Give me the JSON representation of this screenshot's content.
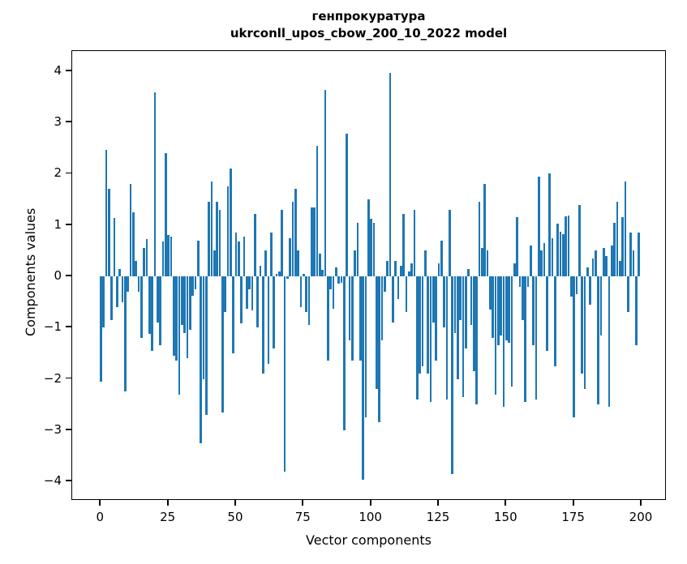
{
  "figure": {
    "background": "#ffffff",
    "bar_color": "#1f77b4",
    "spine_color": "#000000"
  },
  "chart_data": {
    "type": "bar",
    "title": "генпрокуратура",
    "subtitle": "ukrconll_upos_cbow_200_10_2022 model",
    "xlabel": "Vector components",
    "ylabel": "Components values",
    "x_ticks": [
      0,
      25,
      50,
      75,
      100,
      125,
      150,
      175,
      200
    ],
    "y_ticks": [
      4,
      3,
      2,
      1,
      0,
      -1,
      -2,
      -3,
      -4
    ],
    "y_tick_labels": [
      "4",
      "3",
      "2",
      "1",
      "0",
      "−1",
      "−2",
      "−3",
      "−4"
    ],
    "x_tick_labels": [
      "0",
      "25",
      "50",
      "75",
      "100",
      "125",
      "150",
      "175",
      "200"
    ],
    "ylim": [
      -4.35,
      4.35
    ],
    "xlim": [
      -10,
      210
    ],
    "grid": false,
    "legend": null,
    "n_bars": 200,
    "values": [
      -2.05,
      -1.0,
      2.47,
      1.7,
      -0.85,
      1.13,
      -0.6,
      0.15,
      -0.5,
      -2.25,
      -0.3,
      1.8,
      1.25,
      0.3,
      -0.3,
      -1.2,
      0.55,
      0.72,
      -1.12,
      -1.45,
      3.58,
      -0.9,
      -1.35,
      0.68,
      2.4,
      0.8,
      0.78,
      -1.55,
      -1.65,
      -2.3,
      -0.95,
      -1.1,
      -1.6,
      -1.05,
      -0.38,
      -0.26,
      0.7,
      -3.25,
      -2.0,
      -2.7,
      1.45,
      1.85,
      0.5,
      1.45,
      1.3,
      -2.65,
      -0.7,
      1.75,
      2.1,
      -1.5,
      0.85,
      0.68,
      -0.92,
      0.77,
      -0.63,
      -0.25,
      -0.66,
      1.22,
      -1.0,
      0.2,
      -1.9,
      0.5,
      -1.7,
      0.85,
      -1.4,
      0.05,
      0.1,
      1.3,
      -3.8,
      -0.05,
      0.75,
      1.45,
      1.7,
      0.5,
      -0.6,
      0.05,
      -0.7,
      -0.95,
      1.35,
      1.35,
      2.55,
      0.45,
      0.12,
      3.63,
      -1.65,
      -0.26,
      -0.63,
      0.17,
      -0.15,
      -0.12,
      -3.0,
      2.78,
      -1.25,
      -1.65,
      0.5,
      1.05,
      -1.65,
      -3.97,
      -2.75,
      1.5,
      1.12,
      1.05,
      -2.2,
      -2.85,
      -1.25,
      -0.3,
      0.3,
      3.97,
      -0.9,
      0.3,
      -0.45,
      0.2,
      1.22,
      -0.7,
      0.1,
      0.25,
      1.3,
      -2.4,
      -1.9,
      -1.75,
      0.5,
      -1.9,
      -2.45,
      -0.9,
      -1.65,
      0.25,
      0.7,
      -1.0,
      -2.4,
      1.3,
      -3.85,
      -1.1,
      -2.0,
      -0.85,
      -2.35,
      -1.4,
      0.15,
      -0.95,
      -1.85,
      -2.5,
      1.45,
      0.55,
      1.8,
      0.5,
      -0.65,
      -1.2,
      -2.3,
      -1.35,
      -1.15,
      -2.55,
      -1.25,
      -1.3,
      -2.15,
      0.25,
      1.15,
      -0.2,
      -0.85,
      -2.45,
      -0.2,
      0.6,
      -1.35,
      -2.4,
      1.95,
      0.5,
      0.65,
      -1.45,
      2.0,
      0.75,
      -1.75,
      1.02,
      0.87,
      0.82,
      1.17,
      1.19,
      -0.4,
      -2.75,
      -0.35,
      1.39,
      -1.9,
      -2.2,
      0.17,
      -0.55,
      0.34,
      0.51,
      -2.5,
      -1.15,
      0.55,
      0.4,
      -2.55,
      0.6,
      1.05,
      1.45,
      0.3,
      1.15,
      1.85,
      -0.7,
      0.85,
      0.5,
      -1.35,
      0.85
    ]
  }
}
